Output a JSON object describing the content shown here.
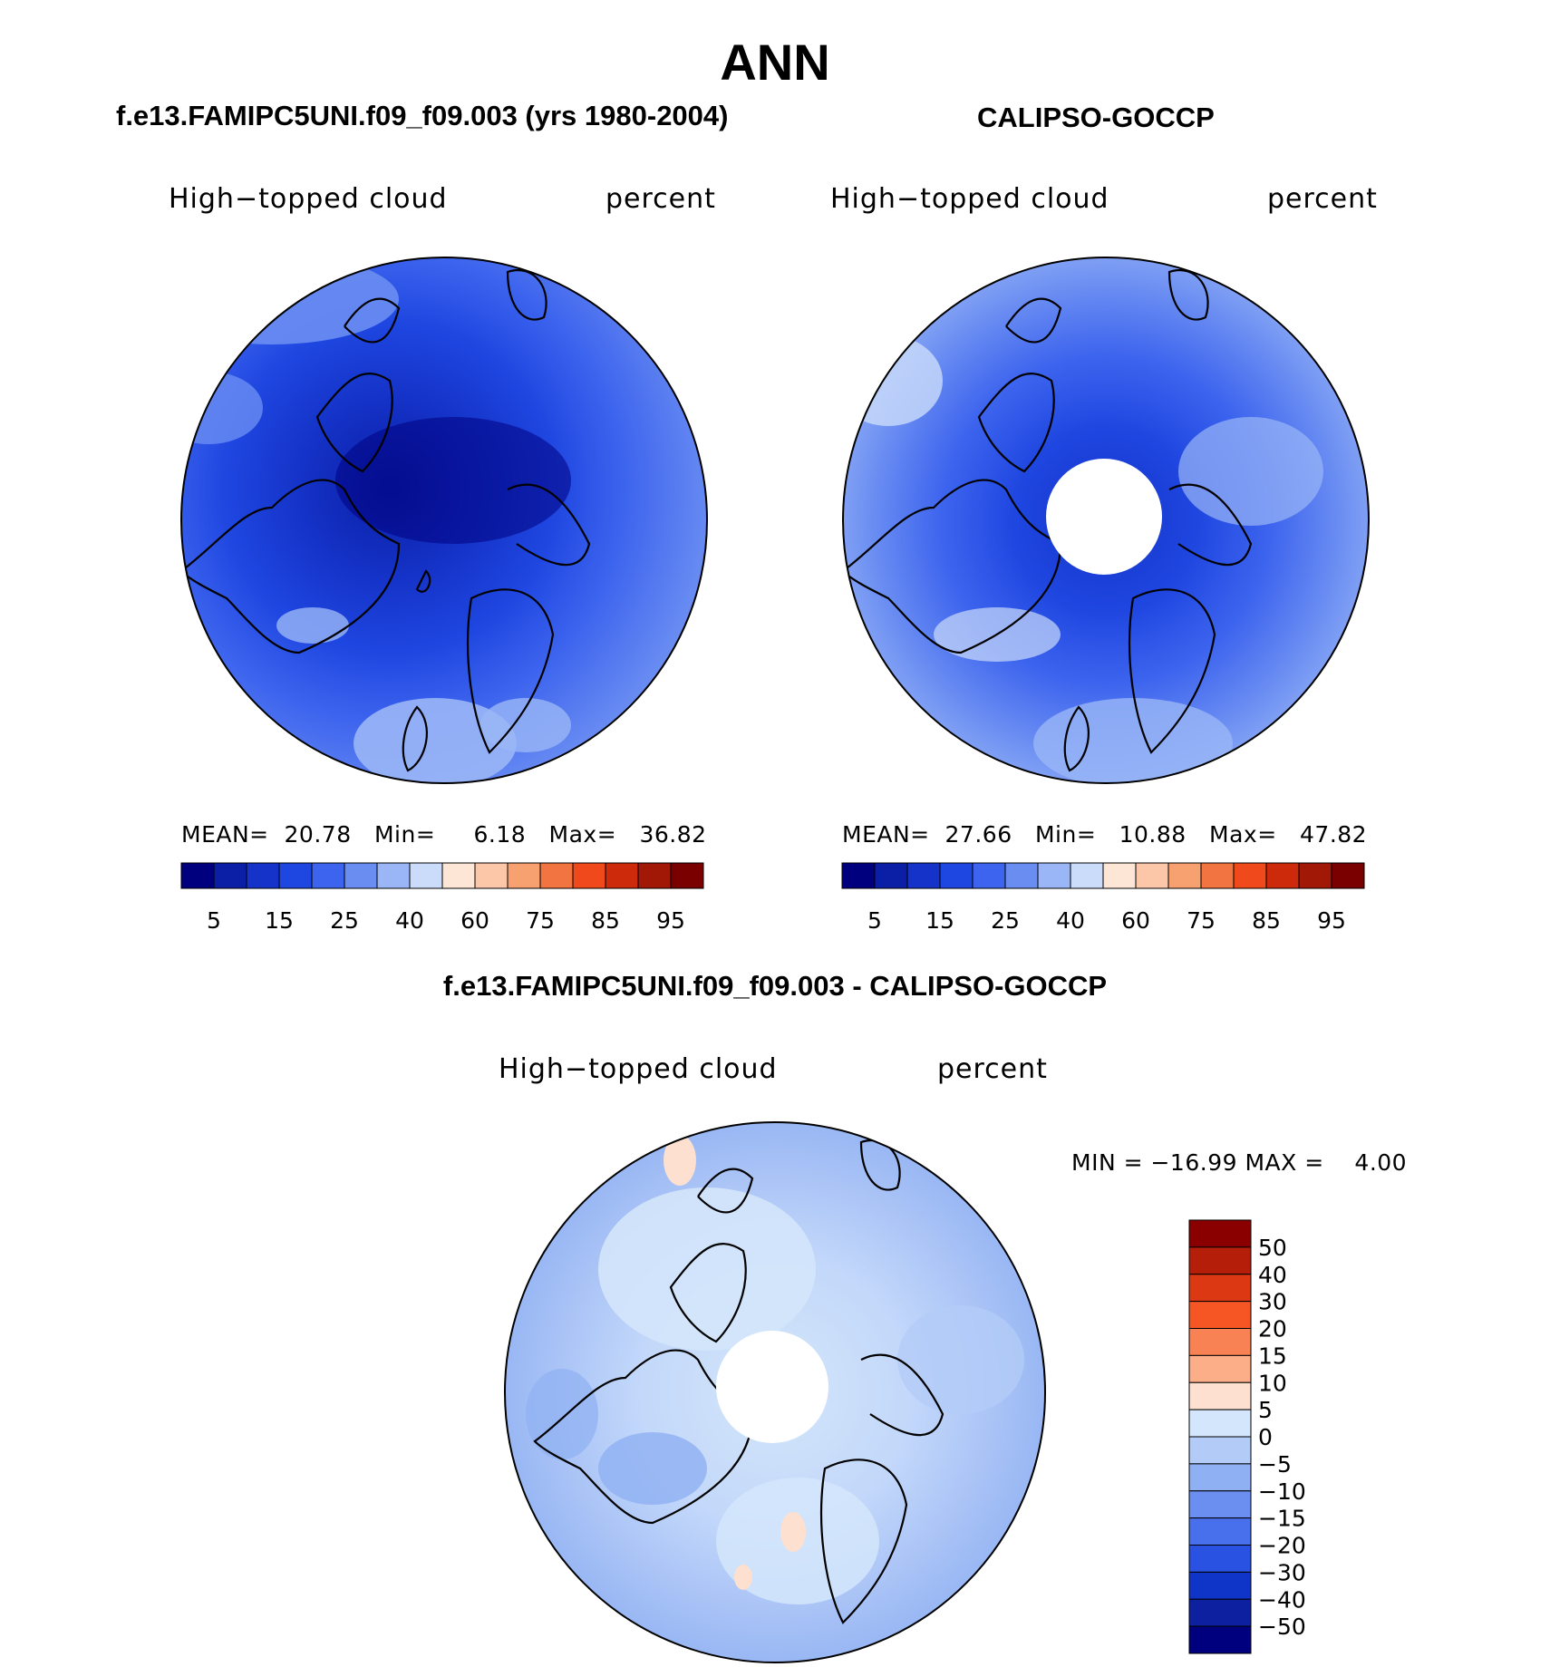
{
  "page": {
    "season": "ANN"
  },
  "panels": [
    {
      "id": "model",
      "header": "f.e13.FAMIPC5UNI.f09_f09.003 (yrs 1980-2004)",
      "variable": "High−topped cloud",
      "units": "percent",
      "stats": {
        "mean_label": "MEAN=",
        "mean": "20.78",
        "min_label": "Min=",
        "min": "6.18",
        "max_label": "Max=",
        "max": "36.82"
      }
    },
    {
      "id": "obs",
      "header": "CALIPSO-GOCCP",
      "variable": "High−topped cloud",
      "units": "percent",
      "stats": {
        "mean_label": "MEAN=",
        "mean": "27.66",
        "min_label": "Min=",
        "min": "10.88",
        "max_label": "Max=",
        "max": "47.82"
      }
    },
    {
      "id": "diff",
      "header": "f.e13.FAMIPC5UNI.f09_f09.003 - CALIPSO-GOCCP",
      "variable": "High−topped cloud",
      "units": "percent",
      "stats_text": "MIN = −16.99 MAX =    4.00"
    }
  ],
  "abs_colorbar": {
    "colors": [
      "#00007f",
      "#0a1fa6",
      "#1533c8",
      "#1e46e0",
      "#3d64ee",
      "#6a8df2",
      "#9ab6f6",
      "#cbdcfa",
      "#fde6d6",
      "#fcc6a8",
      "#f7a070",
      "#f27440",
      "#f04a1c",
      "#cc2a0a",
      "#a11807",
      "#7a0000"
    ],
    "labels": [
      "5",
      "15",
      "25",
      "40",
      "60",
      "75",
      "85",
      "95"
    ]
  },
  "diff_colorbar": {
    "colors": [
      "#8a0000",
      "#b51f0a",
      "#dc3813",
      "#f55624",
      "#f88254",
      "#fbae88",
      "#fde0cf",
      "#d4e6fb",
      "#b3ccf7",
      "#8fb0f2",
      "#6b8ff0",
      "#4870ec",
      "#2a52e2",
      "#0f35c8",
      "#0d20a0",
      "#00007f"
    ],
    "labels": [
      "50",
      "40",
      "30",
      "20",
      "15",
      "10",
      "5",
      "0",
      "−5",
      "−10",
      "−15",
      "−20",
      "−30",
      "−40",
      "−50"
    ]
  }
}
